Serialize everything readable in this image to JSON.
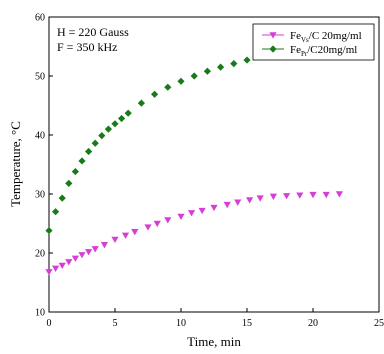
{
  "chart_data": {
    "type": "scatter",
    "xlabel": "Time, min",
    "ylabel_main": "Temperature, ",
    "ylabel_unit": "°C",
    "xlim": [
      0,
      25
    ],
    "ylim": [
      10,
      60
    ],
    "xticks": [
      0,
      5,
      10,
      15,
      20,
      25
    ],
    "yticks": [
      10,
      20,
      30,
      40,
      50,
      60
    ],
    "grid": false,
    "legend_position": "top-right",
    "annotations": [
      "H = 220 Gauss",
      "F = 350 kHz"
    ],
    "series": [
      {
        "name_parts": [
          "Fe",
          "Vs",
          "/C 20mg/ml"
        ],
        "color": "#d63fd6",
        "marker": "triangle-down",
        "x": [
          0,
          0.5,
          1,
          1.5,
          2,
          2.5,
          3,
          3.5,
          4.2,
          5,
          5.8,
          6.5,
          7.5,
          8.2,
          9,
          10,
          10.8,
          11.6,
          12.5,
          13.5,
          14.3,
          15.2,
          16,
          17,
          18,
          19,
          20,
          21,
          22
        ],
        "y": [
          16.8,
          17.4,
          17.9,
          18.5,
          19.1,
          19.7,
          20.2,
          20.7,
          21.4,
          22.3,
          23.0,
          23.6,
          24.4,
          25.0,
          25.6,
          26.2,
          26.8,
          27.2,
          27.7,
          28.2,
          28.6,
          29.0,
          29.3,
          29.6,
          29.7,
          29.8,
          29.9,
          29.9,
          30.0
        ]
      },
      {
        "name_parts": [
          "Fe",
          "Pr",
          "/C20mg/ml"
        ],
        "color": "#1a7a1a",
        "marker": "diamond",
        "x": [
          0,
          0.5,
          1,
          1.5,
          2,
          2.5,
          3,
          3.5,
          4,
          4.5,
          5,
          5.5,
          6,
          7,
          8,
          9,
          10,
          11,
          12,
          13,
          14,
          15
        ],
        "y": [
          23.8,
          27.0,
          29.3,
          31.8,
          33.8,
          35.6,
          37.2,
          38.6,
          39.9,
          41.0,
          41.9,
          42.8,
          43.7,
          45.4,
          46.9,
          48.1,
          49.1,
          50.0,
          50.8,
          51.5,
          52.1,
          52.7
        ]
      }
    ]
  }
}
